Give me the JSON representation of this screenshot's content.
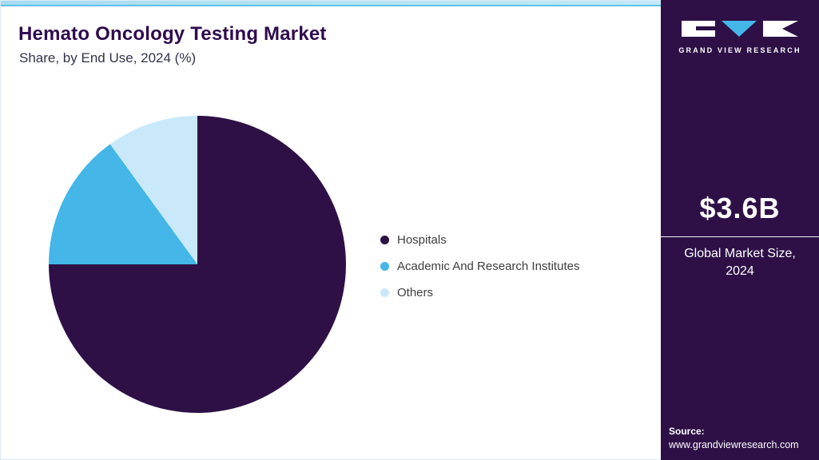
{
  "header": {
    "title": "Hemato Oncology Testing Market",
    "subtitle": "Share, by End Use, 2024 (%)"
  },
  "chart_data": {
    "type": "pie",
    "title": "Hemato Oncology Testing Market Share, by End Use, 2024 (%)",
    "series": [
      {
        "name": "Hospitals",
        "value": 75,
        "color": "#2e1047"
      },
      {
        "name": "Academic And Research Institutes",
        "value": 15,
        "color": "#45b6e8"
      },
      {
        "name": "Others",
        "value": 10,
        "color": "#c9e9fb"
      }
    ],
    "start_angle_deg": 0,
    "direction": "clockwise",
    "legend_position": "right",
    "data_labels": "none"
  },
  "sidebar": {
    "bg_color": "#2e1047",
    "accent_color": "#45b6e8",
    "logo_text": "GRAND VIEW RESEARCH",
    "market_size": "$3.6B",
    "market_size_label": "Global Market Size, 2024",
    "source_label": "Source:",
    "source_url": "www.grandviewresearch.com"
  }
}
